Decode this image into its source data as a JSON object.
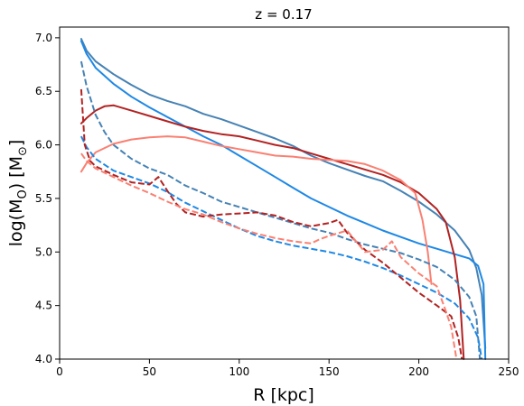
{
  "chart_data": {
    "type": "line",
    "title": "z = 0.17",
    "xlabel": "R [kpc]",
    "ylabel_main": "log(M",
    "ylabel_sub1": "O",
    "ylabel_mid": ") [M",
    "ylabel_sub2": "⊙",
    "ylabel_end": "]",
    "xlim": [
      0,
      250
    ],
    "ylim": [
      4.0,
      7.1
    ],
    "xticks": [
      0,
      50,
      100,
      150,
      200,
      250
    ],
    "xtick_labels": [
      "0",
      "50",
      "100",
      "150",
      "200",
      "250"
    ],
    "yticks": [
      4.0,
      4.5,
      5.0,
      5.5,
      6.0,
      6.5,
      7.0
    ],
    "ytick_labels": [
      "4.0",
      "4.5",
      "5.0",
      "5.5",
      "6.0",
      "6.5",
      "7.0"
    ],
    "grid": false,
    "series": [
      {
        "color": "#4682b4",
        "style": "solid",
        "points": [
          [
            12,
            6.99
          ],
          [
            15,
            6.88
          ],
          [
            20,
            6.78
          ],
          [
            30,
            6.66
          ],
          [
            40,
            6.56
          ],
          [
            50,
            6.47
          ],
          [
            60,
            6.41
          ],
          [
            70,
            6.36
          ],
          [
            80,
            6.29
          ],
          [
            90,
            6.24
          ],
          [
            100,
            6.18
          ],
          [
            110,
            6.12
          ],
          [
            120,
            6.06
          ],
          [
            130,
            5.99
          ],
          [
            140,
            5.9
          ],
          [
            150,
            5.83
          ],
          [
            160,
            5.77
          ],
          [
            170,
            5.71
          ],
          [
            180,
            5.66
          ],
          [
            190,
            5.57
          ],
          [
            200,
            5.47
          ],
          [
            210,
            5.35
          ],
          [
            220,
            5.2
          ],
          [
            228,
            5.02
          ],
          [
            232,
            4.85
          ],
          [
            235,
            4.6
          ],
          [
            237,
            4.1
          ]
        ]
      },
      {
        "color": "#1e88e5",
        "style": "solid",
        "points": [
          [
            12,
            6.97
          ],
          [
            15,
            6.85
          ],
          [
            20,
            6.72
          ],
          [
            30,
            6.57
          ],
          [
            40,
            6.45
          ],
          [
            50,
            6.35
          ],
          [
            60,
            6.26
          ],
          [
            70,
            6.17
          ],
          [
            80,
            6.08
          ],
          [
            90,
            6.0
          ],
          [
            100,
            5.9
          ],
          [
            110,
            5.8
          ],
          [
            120,
            5.7
          ],
          [
            130,
            5.6
          ],
          [
            140,
            5.5
          ],
          [
            150,
            5.42
          ],
          [
            160,
            5.34
          ],
          [
            170,
            5.27
          ],
          [
            180,
            5.2
          ],
          [
            190,
            5.14
          ],
          [
            200,
            5.08
          ],
          [
            210,
            5.03
          ],
          [
            220,
            4.98
          ],
          [
            228,
            4.94
          ],
          [
            233,
            4.87
          ],
          [
            236,
            4.7
          ],
          [
            237,
            4.0
          ]
        ]
      },
      {
        "color": "#b22222",
        "style": "solid",
        "points": [
          [
            12,
            6.2
          ],
          [
            15,
            6.25
          ],
          [
            20,
            6.32
          ],
          [
            25,
            6.36
          ],
          [
            30,
            6.37
          ],
          [
            40,
            6.32
          ],
          [
            50,
            6.27
          ],
          [
            60,
            6.22
          ],
          [
            70,
            6.17
          ],
          [
            80,
            6.13
          ],
          [
            90,
            6.1
          ],
          [
            100,
            6.08
          ],
          [
            110,
            6.04
          ],
          [
            120,
            6.0
          ],
          [
            130,
            5.97
          ],
          [
            140,
            5.92
          ],
          [
            150,
            5.87
          ],
          [
            160,
            5.82
          ],
          [
            170,
            5.77
          ],
          [
            180,
            5.72
          ],
          [
            190,
            5.65
          ],
          [
            200,
            5.55
          ],
          [
            210,
            5.4
          ],
          [
            215,
            5.28
          ],
          [
            220,
            4.95
          ],
          [
            223,
            4.55
          ],
          [
            225,
            4.0
          ]
        ]
      },
      {
        "color": "#fa8072",
        "style": "solid",
        "points": [
          [
            12,
            5.75
          ],
          [
            15,
            5.83
          ],
          [
            20,
            5.93
          ],
          [
            30,
            6.01
          ],
          [
            40,
            6.05
          ],
          [
            50,
            6.07
          ],
          [
            60,
            6.08
          ],
          [
            70,
            6.07
          ],
          [
            80,
            6.03
          ],
          [
            90,
            5.99
          ],
          [
            100,
            5.96
          ],
          [
            110,
            5.93
          ],
          [
            120,
            5.9
          ],
          [
            130,
            5.89
          ],
          [
            140,
            5.87
          ],
          [
            150,
            5.86
          ],
          [
            160,
            5.85
          ],
          [
            170,
            5.82
          ],
          [
            180,
            5.76
          ],
          [
            190,
            5.67
          ],
          [
            198,
            5.55
          ],
          [
            202,
            5.3
          ],
          [
            205,
            5.0
          ],
          [
            207,
            4.7
          ]
        ]
      },
      {
        "color": "#4682b4",
        "style": "dashed",
        "points": [
          [
            12,
            6.78
          ],
          [
            15,
            6.55
          ],
          [
            20,
            6.28
          ],
          [
            25,
            6.12
          ],
          [
            30,
            6.0
          ],
          [
            40,
            5.87
          ],
          [
            50,
            5.78
          ],
          [
            60,
            5.72
          ],
          [
            70,
            5.62
          ],
          [
            80,
            5.55
          ],
          [
            90,
            5.47
          ],
          [
            100,
            5.42
          ],
          [
            110,
            5.37
          ],
          [
            120,
            5.32
          ],
          [
            130,
            5.27
          ],
          [
            140,
            5.22
          ],
          [
            150,
            5.18
          ],
          [
            160,
            5.12
          ],
          [
            170,
            5.07
          ],
          [
            180,
            5.03
          ],
          [
            190,
            4.99
          ],
          [
            200,
            4.93
          ],
          [
            210,
            4.86
          ],
          [
            220,
            4.74
          ],
          [
            228,
            4.58
          ],
          [
            232,
            4.4
          ],
          [
            234,
            4.0
          ]
        ]
      },
      {
        "color": "#1e88e5",
        "style": "dashed",
        "points": [
          [
            12,
            6.08
          ],
          [
            15,
            5.98
          ],
          [
            20,
            5.87
          ],
          [
            30,
            5.76
          ],
          [
            40,
            5.7
          ],
          [
            50,
            5.64
          ],
          [
            60,
            5.56
          ],
          [
            70,
            5.46
          ],
          [
            80,
            5.38
          ],
          [
            90,
            5.3
          ],
          [
            100,
            5.22
          ],
          [
            110,
            5.15
          ],
          [
            120,
            5.1
          ],
          [
            130,
            5.06
          ],
          [
            140,
            5.03
          ],
          [
            150,
            5.0
          ],
          [
            160,
            4.96
          ],
          [
            170,
            4.91
          ],
          [
            180,
            4.85
          ],
          [
            190,
            4.78
          ],
          [
            200,
            4.7
          ],
          [
            210,
            4.62
          ],
          [
            220,
            4.52
          ],
          [
            228,
            4.38
          ],
          [
            233,
            4.2
          ],
          [
            235,
            4.0
          ]
        ]
      },
      {
        "color": "#b22222",
        "style": "dashed",
        "points": [
          [
            12,
            6.52
          ],
          [
            14,
            6.0
          ],
          [
            17,
            5.85
          ],
          [
            20,
            5.8
          ],
          [
            30,
            5.72
          ],
          [
            40,
            5.65
          ],
          [
            50,
            5.63
          ],
          [
            55,
            5.7
          ],
          [
            60,
            5.57
          ],
          [
            65,
            5.45
          ],
          [
            70,
            5.37
          ],
          [
            80,
            5.33
          ],
          [
            90,
            5.35
          ],
          [
            100,
            5.36
          ],
          [
            110,
            5.37
          ],
          [
            120,
            5.34
          ],
          [
            130,
            5.28
          ],
          [
            140,
            5.24
          ],
          [
            150,
            5.27
          ],
          [
            155,
            5.3
          ],
          [
            160,
            5.18
          ],
          [
            170,
            5.02
          ],
          [
            180,
            4.9
          ],
          [
            190,
            4.76
          ],
          [
            200,
            4.62
          ],
          [
            210,
            4.5
          ],
          [
            218,
            4.4
          ],
          [
            222,
            4.2
          ],
          [
            224,
            4.0
          ]
        ]
      },
      {
        "color": "#fa8072",
        "style": "dashed",
        "points": [
          [
            12,
            5.92
          ],
          [
            15,
            5.85
          ],
          [
            20,
            5.78
          ],
          [
            30,
            5.7
          ],
          [
            40,
            5.62
          ],
          [
            50,
            5.55
          ],
          [
            60,
            5.47
          ],
          [
            70,
            5.4
          ],
          [
            80,
            5.35
          ],
          [
            90,
            5.28
          ],
          [
            100,
            5.22
          ],
          [
            110,
            5.17
          ],
          [
            120,
            5.13
          ],
          [
            130,
            5.1
          ],
          [
            140,
            5.08
          ],
          [
            145,
            5.12
          ],
          [
            150,
            5.15
          ],
          [
            160,
            5.2
          ],
          [
            170,
            5.0
          ],
          [
            180,
            5.02
          ],
          [
            185,
            5.1
          ],
          [
            190,
            4.95
          ],
          [
            200,
            4.8
          ],
          [
            210,
            4.68
          ],
          [
            215,
            4.45
          ],
          [
            218,
            4.3
          ],
          [
            221,
            4.0
          ]
        ]
      }
    ]
  }
}
